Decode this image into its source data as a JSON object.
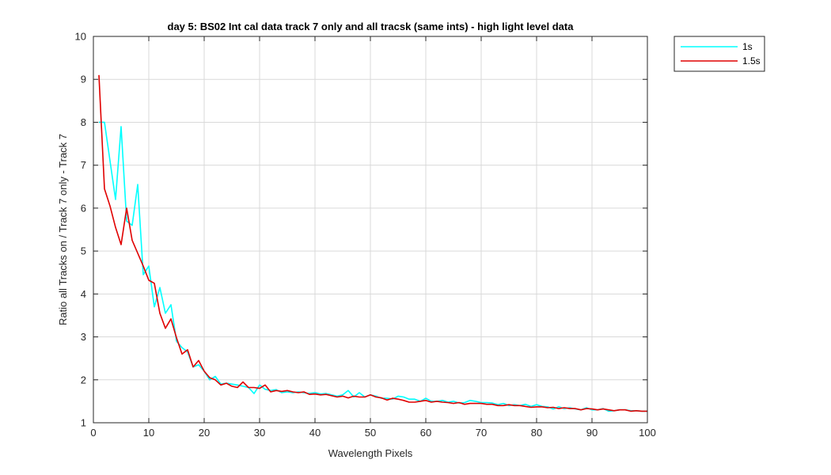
{
  "chart_data": {
    "type": "line",
    "title": "day 5: BS02   Int cal data track 7 only and all tracsk (same ints) - high light level data",
    "xlabel": "Wavelength Pixels",
    "ylabel": "Ratio all Tracks on / Track 7 only - Track 7",
    "xlim": [
      0,
      100
    ],
    "ylim": [
      1,
      10
    ],
    "xticks": [
      0,
      10,
      20,
      30,
      40,
      50,
      60,
      70,
      80,
      90,
      100
    ],
    "yticks": [
      1,
      2,
      3,
      4,
      5,
      6,
      7,
      8,
      9,
      10
    ],
    "grid": true,
    "legend_position": "outside-top-right",
    "series": [
      {
        "name": "1s",
        "color": "#00ffff",
        "x": [
          1,
          2,
          3,
          4,
          5,
          6,
          7,
          8,
          9,
          10,
          11,
          12,
          13,
          14,
          15,
          16,
          17,
          18,
          19,
          20,
          21,
          22,
          23,
          24,
          25,
          26,
          27,
          28,
          29,
          30,
          31,
          32,
          33,
          34,
          35,
          36,
          37,
          38,
          39,
          40,
          41,
          42,
          43,
          44,
          45,
          46,
          47,
          48,
          49,
          50,
          51,
          52,
          53,
          54,
          55,
          56,
          57,
          58,
          59,
          60,
          61,
          62,
          63,
          64,
          65,
          66,
          67,
          68,
          69,
          70,
          71,
          72,
          73,
          74,
          75,
          76,
          77,
          78,
          79,
          80,
          81,
          82,
          83,
          84,
          85,
          86,
          87,
          88,
          89,
          90,
          91,
          92,
          93,
          94,
          95,
          96,
          97,
          98,
          99,
          100
        ],
        "y": [
          8.0,
          8.0,
          7.1,
          6.2,
          7.9,
          5.7,
          5.6,
          6.55,
          4.45,
          4.65,
          3.7,
          4.15,
          3.55,
          3.75,
          2.9,
          2.75,
          2.65,
          2.3,
          2.35,
          2.2,
          2.0,
          2.08,
          1.9,
          1.92,
          1.9,
          1.88,
          1.85,
          1.82,
          1.68,
          1.88,
          1.78,
          1.75,
          1.77,
          1.7,
          1.72,
          1.7,
          1.72,
          1.7,
          1.68,
          1.7,
          1.67,
          1.68,
          1.65,
          1.62,
          1.65,
          1.75,
          1.6,
          1.7,
          1.6,
          1.65,
          1.62,
          1.57,
          1.57,
          1.55,
          1.62,
          1.6,
          1.55,
          1.55,
          1.5,
          1.57,
          1.5,
          1.5,
          1.52,
          1.48,
          1.5,
          1.46,
          1.47,
          1.52,
          1.5,
          1.47,
          1.47,
          1.46,
          1.42,
          1.45,
          1.4,
          1.42,
          1.4,
          1.43,
          1.38,
          1.42,
          1.38,
          1.37,
          1.32,
          1.37,
          1.33,
          1.35,
          1.32,
          1.3,
          1.35,
          1.3,
          1.3,
          1.33,
          1.27,
          1.28,
          1.3,
          1.3,
          1.28,
          1.28,
          1.27,
          1.27
        ]
      },
      {
        "name": "1.5s",
        "color": "#e00000",
        "x": [
          1,
          2,
          3,
          4,
          5,
          6,
          7,
          8,
          9,
          10,
          11,
          12,
          13,
          14,
          15,
          16,
          17,
          18,
          19,
          20,
          21,
          22,
          23,
          24,
          25,
          26,
          27,
          28,
          29,
          30,
          31,
          32,
          33,
          34,
          35,
          36,
          37,
          38,
          39,
          40,
          41,
          42,
          43,
          44,
          45,
          46,
          47,
          48,
          49,
          50,
          51,
          52,
          53,
          54,
          55,
          56,
          57,
          58,
          59,
          60,
          61,
          62,
          63,
          64,
          65,
          66,
          67,
          68,
          69,
          70,
          71,
          72,
          73,
          74,
          75,
          76,
          77,
          78,
          79,
          80,
          81,
          82,
          83,
          84,
          85,
          86,
          87,
          88,
          89,
          90,
          91,
          92,
          93,
          94,
          95,
          96,
          97,
          98,
          99,
          100
        ],
        "y": [
          9.1,
          6.45,
          6.05,
          5.55,
          5.15,
          6.0,
          5.25,
          4.95,
          4.65,
          4.32,
          4.25,
          3.55,
          3.2,
          3.42,
          2.98,
          2.6,
          2.7,
          2.3,
          2.45,
          2.2,
          2.05,
          2.0,
          1.88,
          1.92,
          1.85,
          1.82,
          1.95,
          1.82,
          1.82,
          1.8,
          1.88,
          1.72,
          1.75,
          1.73,
          1.75,
          1.72,
          1.7,
          1.72,
          1.66,
          1.67,
          1.65,
          1.66,
          1.63,
          1.6,
          1.62,
          1.58,
          1.62,
          1.6,
          1.6,
          1.65,
          1.6,
          1.58,
          1.53,
          1.57,
          1.55,
          1.52,
          1.48,
          1.48,
          1.5,
          1.52,
          1.48,
          1.5,
          1.48,
          1.47,
          1.45,
          1.47,
          1.43,
          1.45,
          1.45,
          1.45,
          1.43,
          1.43,
          1.4,
          1.4,
          1.42,
          1.4,
          1.4,
          1.38,
          1.36,
          1.37,
          1.37,
          1.35,
          1.36,
          1.33,
          1.35,
          1.33,
          1.33,
          1.3,
          1.33,
          1.32,
          1.3,
          1.32,
          1.3,
          1.28,
          1.3,
          1.3,
          1.27,
          1.28,
          1.27,
          1.27
        ]
      }
    ]
  }
}
